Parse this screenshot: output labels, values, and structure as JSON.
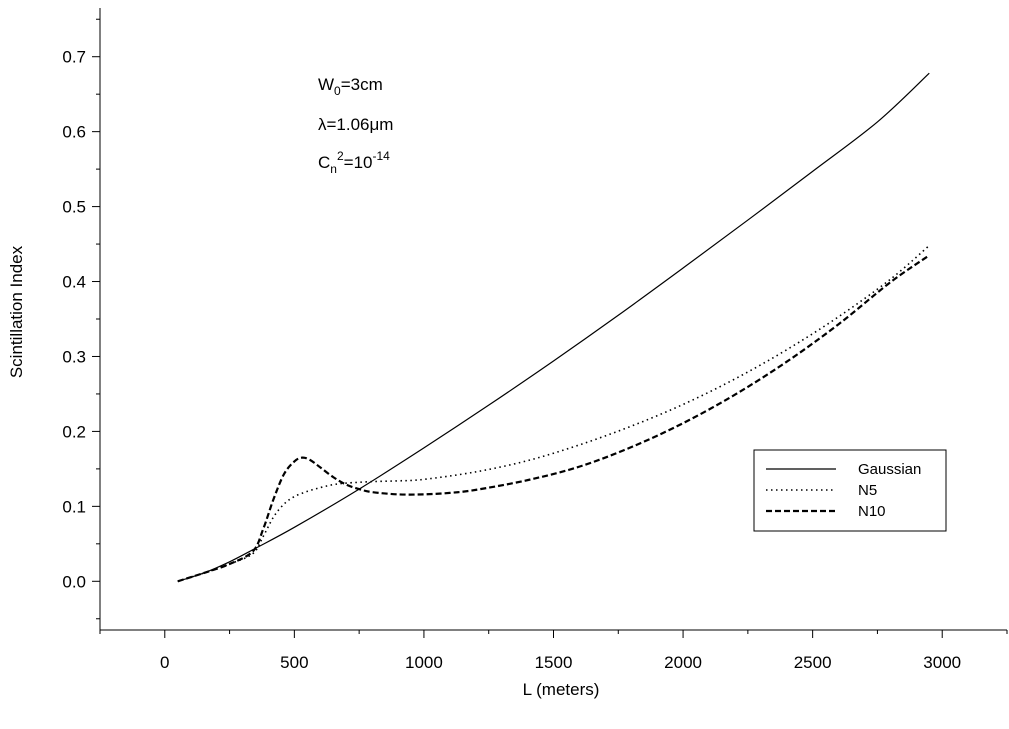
{
  "chart_data": {
    "type": "line",
    "title": "",
    "xlabel": "L (meters)",
    "ylabel": "Scintillation Index",
    "xlim": [
      -250,
      3250
    ],
    "ylim": [
      -0.065,
      0.765
    ],
    "xticks": [
      0,
      500,
      1000,
      1500,
      2000,
      2500,
      3000
    ],
    "xtick_labels": [
      "0",
      "500",
      "1000",
      "1500",
      "2000",
      "2500",
      "3000"
    ],
    "yticks": [
      0.0,
      0.1,
      0.2,
      0.3,
      0.4,
      0.5,
      0.6,
      0.7
    ],
    "ytick_labels": [
      "0.0",
      "0.1",
      "0.2",
      "0.3",
      "0.4",
      "0.5",
      "0.6",
      "0.7"
    ],
    "grid": false,
    "legend_position": "right",
    "annotations": {
      "w0": {
        "main": "W",
        "sub": "0",
        "rest": "=3cm"
      },
      "lambda": "λ=1.06μm",
      "cn2": {
        "main": "C",
        "sub": "n",
        "sup": "2",
        "mid": "=10",
        "sup2": "-14"
      }
    },
    "series": [
      {
        "name": "Gaussian",
        "style": "solid",
        "x": [
          50,
          150,
          250,
          350,
          500,
          750,
          1000,
          1250,
          1500,
          1750,
          2000,
          2250,
          2500,
          2750,
          2950
        ],
        "y": [
          0.0,
          0.011,
          0.026,
          0.044,
          0.072,
          0.123,
          0.178,
          0.235,
          0.294,
          0.355,
          0.418,
          0.482,
          0.547,
          0.613,
          0.678
        ]
      },
      {
        "name": "N5",
        "style": "dotted",
        "x": [
          50,
          150,
          250,
          340,
          380,
          420,
          460,
          500,
          550,
          600,
          650,
          700,
          800,
          900,
          1000,
          1200,
          1400,
          1600,
          1800,
          2000,
          2200,
          2400,
          2600,
          2800,
          2950
        ],
        "y": [
          0.0,
          0.011,
          0.023,
          0.037,
          0.06,
          0.086,
          0.103,
          0.113,
          0.12,
          0.125,
          0.129,
          0.131,
          0.133,
          0.134,
          0.136,
          0.146,
          0.161,
          0.182,
          0.207,
          0.236,
          0.27,
          0.309,
          0.353,
          0.403,
          0.448
        ]
      },
      {
        "name": "N10",
        "style": "dashed",
        "x": [
          50,
          150,
          250,
          340,
          380,
          420,
          460,
          500,
          530,
          560,
          600,
          650,
          700,
          750,
          800,
          900,
          1000,
          1100,
          1200,
          1400,
          1600,
          1800,
          2000,
          2200,
          2400,
          2600,
          2800,
          2950
        ],
        "y": [
          0.0,
          0.011,
          0.023,
          0.04,
          0.07,
          0.11,
          0.143,
          0.16,
          0.165,
          0.162,
          0.152,
          0.139,
          0.129,
          0.123,
          0.119,
          0.116,
          0.116,
          0.118,
          0.122,
          0.135,
          0.153,
          0.179,
          0.211,
          0.249,
          0.293,
          0.343,
          0.399,
          0.435
        ]
      }
    ]
  }
}
